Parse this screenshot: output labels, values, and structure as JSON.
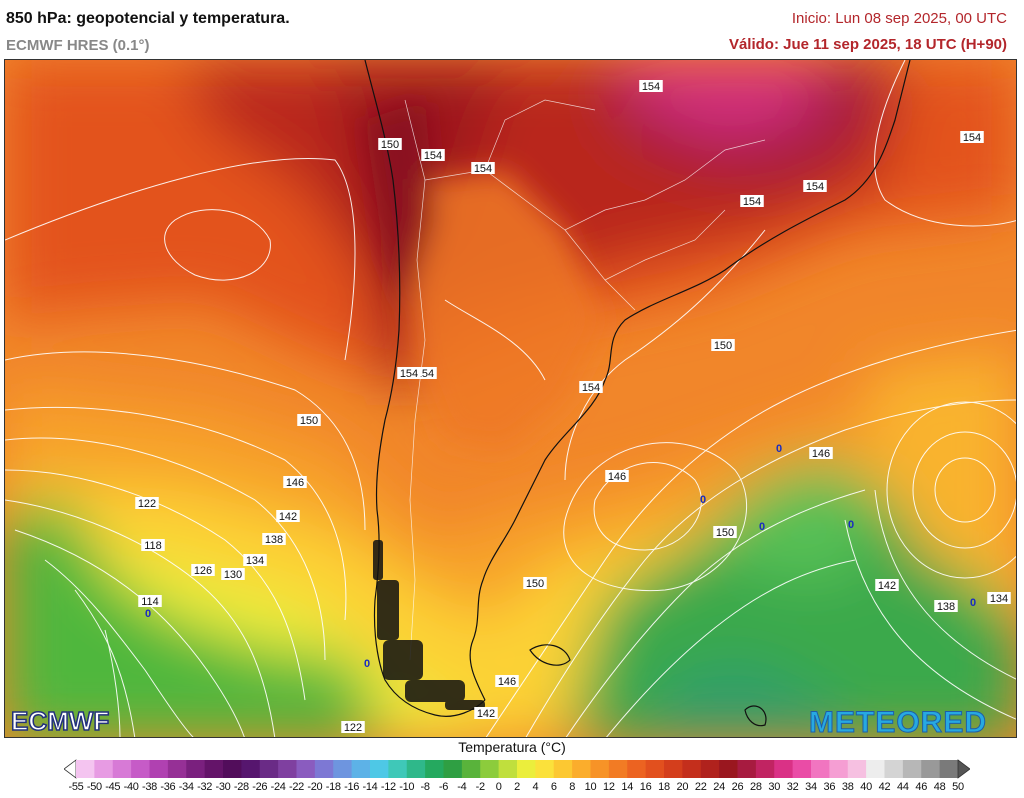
{
  "header": {
    "title": "850 hPa: geopotencial y temperatura.",
    "model": "ECMWF HRES (0.1°)",
    "init": "Inicio: Lun 08 sep 2025, 00 UTC",
    "valid": "Válido: Jue 11 sep 2025, 18 UTC (H+90)"
  },
  "map": {
    "contour_labels": [
      "154",
      "150",
      "154",
      "154",
      "154",
      "154",
      "154",
      "154",
      "150",
      "154",
      "154",
      "150",
      "146",
      "146",
      "146",
      "122",
      "142",
      "138",
      "118",
      "134",
      "126",
      "130",
      "114",
      "150",
      "150",
      "142",
      "138",
      "134",
      "146",
      "142",
      "122"
    ],
    "low_markers": [
      "0",
      "0",
      "0",
      "0",
      "0",
      "0",
      "0"
    ],
    "logos": {
      "left": "ECMWF",
      "right": "METEORED"
    }
  },
  "legend": {
    "title": "Temperatura (°C)",
    "ticks": [
      "-55",
      "-50",
      "-45",
      "-40",
      "-38",
      "-36",
      "-34",
      "-32",
      "-30",
      "-28",
      "-26",
      "-24",
      "-22",
      "-20",
      "-18",
      "-16",
      "-14",
      "-12",
      "-10",
      "-8",
      "-6",
      "-4",
      "-2",
      "0",
      "2",
      "4",
      "6",
      "8",
      "10",
      "12",
      "14",
      "16",
      "18",
      "20",
      "22",
      "24",
      "26",
      "28",
      "30",
      "32",
      "34",
      "36",
      "38",
      "40",
      "42",
      "44",
      "46",
      "48",
      "50"
    ],
    "colors": [
      "#ffffff",
      "#f4c4f0",
      "#e79be3",
      "#d77ad6",
      "#c65bc7",
      "#b041b1",
      "#963096",
      "#7a207e",
      "#641469",
      "#520d5b",
      "#56166e",
      "#6a2b86",
      "#7f40a0",
      "#8a5cbf",
      "#7d78d4",
      "#6e95df",
      "#5db2e7",
      "#4ec8e6",
      "#3fc8b8",
      "#2fb88a",
      "#25a95f",
      "#2f9f43",
      "#59b33b",
      "#8ccc3c",
      "#c0df3d",
      "#ebee3c",
      "#fbe13b",
      "#fcc832",
      "#fbad2c",
      "#f79327",
      "#f27b24",
      "#ec6321",
      "#e2501e",
      "#d43e1c",
      "#c42f1c",
      "#b0221d",
      "#9a171f",
      "#a71b40",
      "#c12462",
      "#da3186",
      "#ea4ca6",
      "#f175c0",
      "#f59ed3",
      "#f6c0e1",
      "#ededed",
      "#d4d4d4",
      "#b7b7b7",
      "#999999",
      "#7a7a7a",
      "#555555"
    ]
  }
}
